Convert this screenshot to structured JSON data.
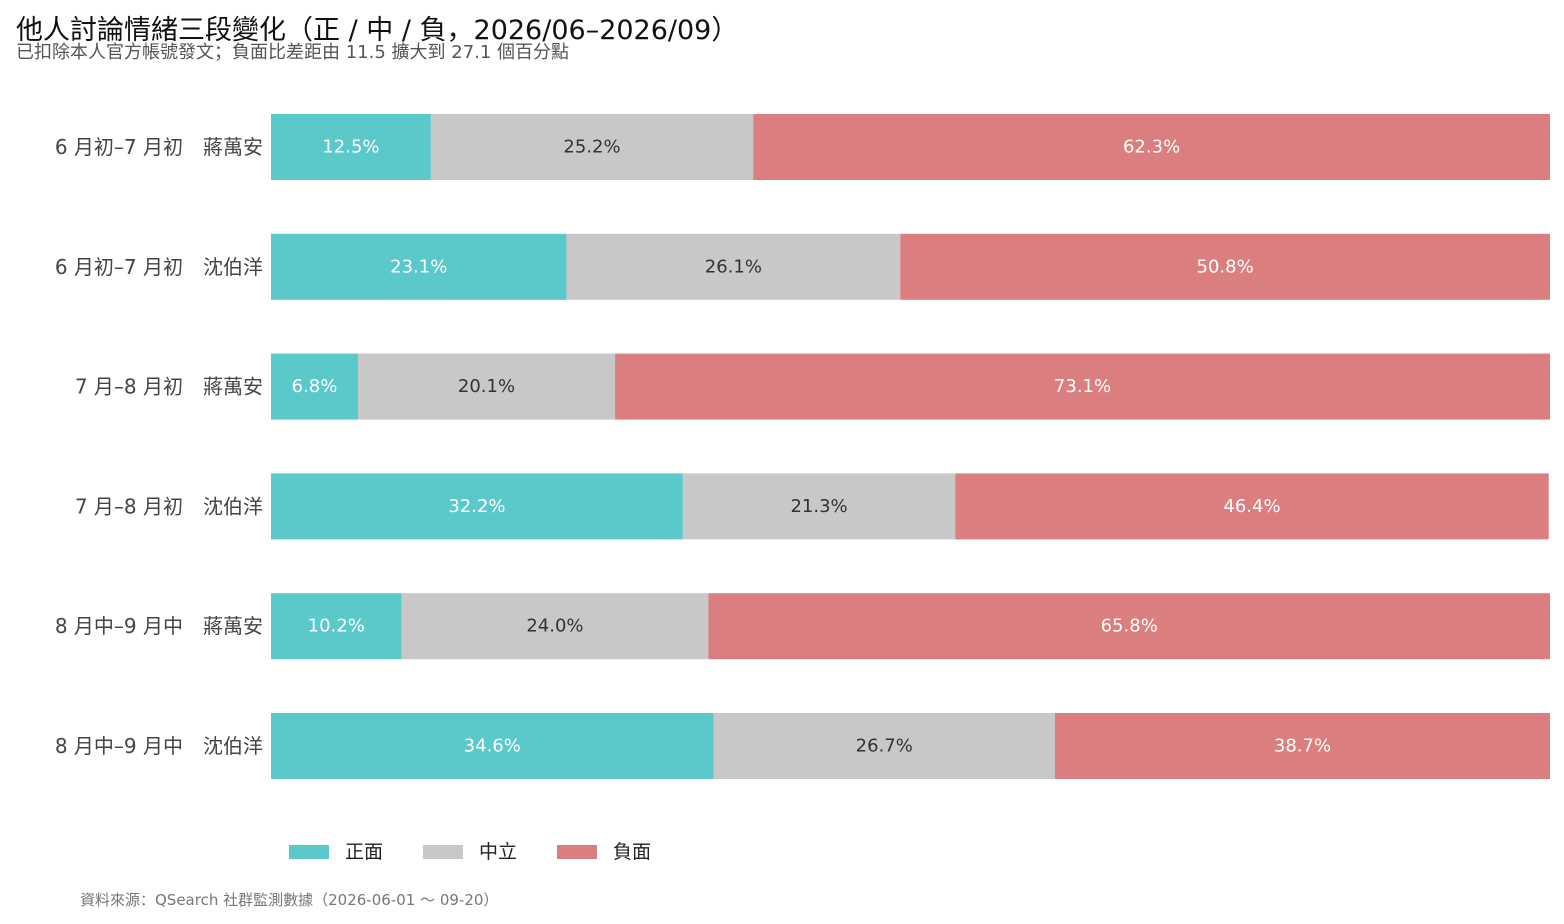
{
  "title": "他人討論情緒三段變化（正 / 中 / 負，2026/06–2026/09）",
  "subtitle": "已扣除本人官方帳號發文；負面比差距由 11.5 擴大到 27.1 個百分點",
  "source": "資料來源：QSearch 社群監測數據（2026-06-01 ～ 09-20）",
  "colors": {
    "positive": "#5BC8CA",
    "neutral": "#C8C8C8",
    "negative": "#DB7E80"
  },
  "chart_data": {
    "type": "bar",
    "orientation": "horizontal",
    "stacked": true,
    "percent": true,
    "categories": [
      "6 月初–7 月初　蔣萬安",
      "6 月初–7 月初　沈伯洋",
      "7 月–8 月初　蔣萬安",
      "7 月–8 月初　沈伯洋",
      "8 月中–9 月中　蔣萬安",
      "8 月中–9 月中　沈伯洋"
    ],
    "series": [
      {
        "name": "正面",
        "color": "#5BC8CA",
        "label_color": "#ffffff",
        "values": [
          12.5,
          23.1,
          6.8,
          32.2,
          10.2,
          34.6
        ]
      },
      {
        "name": "中立",
        "color": "#C8C8C8",
        "label_color": "#333333",
        "values": [
          25.2,
          26.1,
          20.1,
          21.3,
          24.0,
          26.7
        ]
      },
      {
        "name": "負面",
        "color": "#DB7E80",
        "label_color": "#ffffff",
        "values": [
          62.3,
          50.8,
          73.1,
          46.4,
          65.8,
          38.7
        ]
      }
    ],
    "xlim": [
      0,
      100
    ],
    "value_format": "{v}%",
    "grid": false,
    "legend": "bottom"
  }
}
